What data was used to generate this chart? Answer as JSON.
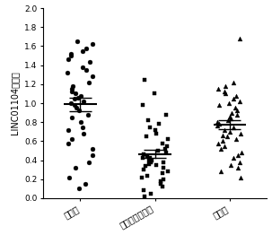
{
  "title": "",
  "ylabel": "LINC01104表达量",
  "ylim": [
    0.0,
    2.0
  ],
  "yticks": [
    0.0,
    0.2,
    0.4,
    0.6,
    0.8,
    1.0,
    1.2,
    1.4,
    1.6,
    1.8,
    2.0
  ],
  "groups": [
    "正常组",
    "急性心肌棗死组",
    "治疗组"
  ],
  "marker_styles": [
    "o",
    "s",
    "^"
  ],
  "marker_color": "#000000",
  "marker_size": 3.5,
  "group1_data": [
    1.65,
    1.62,
    1.58,
    1.55,
    1.52,
    1.5,
    1.46,
    1.43,
    1.38,
    1.35,
    1.32,
    1.28,
    1.22,
    1.18,
    1.15,
    1.12,
    1.1,
    1.08,
    1.06,
    1.05,
    1.02,
    1.0,
    0.98,
    0.95,
    0.92,
    0.88,
    0.85,
    0.8,
    0.75,
    0.72,
    0.68,
    0.62,
    0.58,
    0.52,
    0.45,
    0.38,
    0.32,
    0.22,
    0.15,
    0.1
  ],
  "group2_data": [
    1.25,
    1.1,
    0.98,
    0.88,
    0.82,
    0.78,
    0.75,
    0.72,
    0.68,
    0.65,
    0.62,
    0.58,
    0.55,
    0.52,
    0.5,
    0.48,
    0.46,
    0.44,
    0.42,
    0.42,
    0.4,
    0.4,
    0.38,
    0.38,
    0.36,
    0.35,
    0.34,
    0.32,
    0.3,
    0.28,
    0.26,
    0.24,
    0.22,
    0.2,
    0.18,
    0.15,
    0.12,
    0.08,
    0.05,
    0.02
  ],
  "group3_data": [
    1.68,
    1.22,
    1.18,
    1.15,
    1.12,
    1.1,
    1.08,
    1.05,
    1.02,
    1.0,
    0.98,
    0.95,
    0.92,
    0.9,
    0.88,
    0.86,
    0.84,
    0.82,
    0.8,
    0.78,
    0.76,
    0.75,
    0.72,
    0.7,
    0.68,
    0.66,
    0.65,
    0.62,
    0.6,
    0.58,
    0.55,
    0.52,
    0.48,
    0.45,
    0.42,
    0.38,
    0.32,
    0.28,
    0.22,
    0.35
  ],
  "fig_width": 3.03,
  "fig_height": 2.62,
  "dpi": 100,
  "background_color": "#ffffff",
  "tick_fontsize": 6.5,
  "label_fontsize": 7,
  "xlabel_fontsize": 7
}
